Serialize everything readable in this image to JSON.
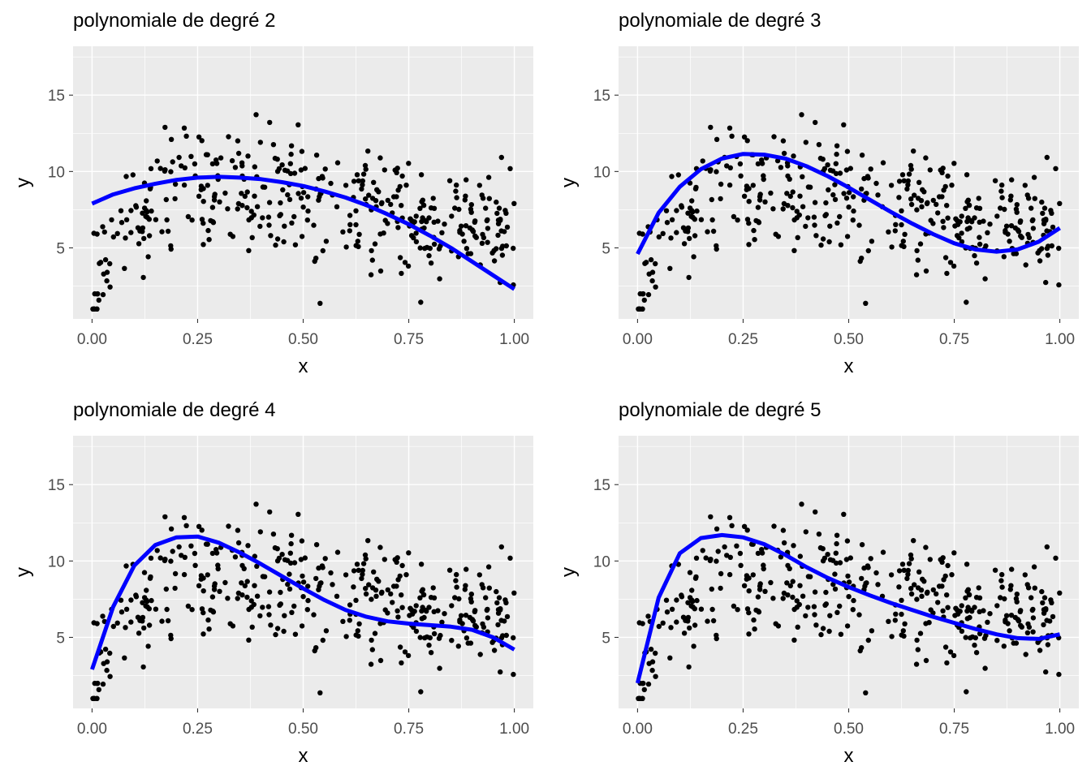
{
  "chart_data": [
    {
      "type": "scatter",
      "title": "polynomiale de degré 2",
      "xlabel": "x",
      "ylabel": "y",
      "xlim": [
        -0.045,
        1.045
      ],
      "ylim": [
        0.35,
        18.2
      ],
      "x_ticks": [
        {
          "v": 0,
          "label": "0.00"
        },
        {
          "v": 0.25,
          "label": "0.25"
        },
        {
          "v": 0.5,
          "label": "0.50"
        },
        {
          "v": 0.75,
          "label": "0.75"
        },
        {
          "v": 1,
          "label": "1.00"
        }
      ],
      "y_ticks": [
        {
          "v": 5,
          "label": "5"
        },
        {
          "v": 10,
          "label": "10"
        },
        {
          "v": 15,
          "label": "15"
        }
      ],
      "fit": {
        "name": "polynomial fit (degree 2)",
        "color": "#0000ff",
        "x": [
          0,
          0.05,
          0.1,
          0.15,
          0.2,
          0.25,
          0.3,
          0.35,
          0.4,
          0.45,
          0.5,
          0.55,
          0.6,
          0.65,
          0.7,
          0.75,
          0.8,
          0.85,
          0.9,
          0.95,
          1.0
        ],
        "y": [
          7.9,
          8.5,
          8.9,
          9.2,
          9.45,
          9.6,
          9.65,
          9.6,
          9.5,
          9.3,
          9.05,
          8.7,
          8.3,
          7.8,
          7.2,
          6.55,
          5.8,
          5.0,
          4.1,
          3.2,
          2.3
        ]
      }
    },
    {
      "type": "scatter",
      "title": "polynomiale de degré 3",
      "xlabel": "x",
      "ylabel": "y",
      "xlim": [
        -0.045,
        1.045
      ],
      "ylim": [
        0.35,
        18.2
      ],
      "x_ticks": [
        {
          "v": 0,
          "label": "0.00"
        },
        {
          "v": 0.25,
          "label": "0.25"
        },
        {
          "v": 0.5,
          "label": "0.50"
        },
        {
          "v": 0.75,
          "label": "0.75"
        },
        {
          "v": 1,
          "label": "1.00"
        }
      ],
      "y_ticks": [
        {
          "v": 5,
          "label": "5"
        },
        {
          "v": 10,
          "label": "10"
        },
        {
          "v": 15,
          "label": "15"
        }
      ],
      "fit": {
        "name": "polynomial fit (degree 3)",
        "color": "#0000ff",
        "x": [
          0,
          0.05,
          0.1,
          0.15,
          0.2,
          0.25,
          0.3,
          0.35,
          0.4,
          0.45,
          0.5,
          0.55,
          0.6,
          0.65,
          0.7,
          0.75,
          0.8,
          0.85,
          0.9,
          0.95,
          1.0
        ],
        "y": [
          4.6,
          7.3,
          9.0,
          10.15,
          10.85,
          11.15,
          11.1,
          10.85,
          10.35,
          9.7,
          8.95,
          8.15,
          7.35,
          6.6,
          5.9,
          5.3,
          4.9,
          4.75,
          4.9,
          5.4,
          6.3
        ]
      }
    },
    {
      "type": "scatter",
      "title": "polynomiale de degré 4",
      "xlabel": "x",
      "ylabel": "y",
      "xlim": [
        -0.045,
        1.045
      ],
      "ylim": [
        0.35,
        18.2
      ],
      "x_ticks": [
        {
          "v": 0,
          "label": "0.00"
        },
        {
          "v": 0.25,
          "label": "0.25"
        },
        {
          "v": 0.5,
          "label": "0.50"
        },
        {
          "v": 0.75,
          "label": "0.75"
        },
        {
          "v": 1,
          "label": "1.00"
        }
      ],
      "y_ticks": [
        {
          "v": 5,
          "label": "5"
        },
        {
          "v": 10,
          "label": "10"
        },
        {
          "v": 15,
          "label": "15"
        }
      ],
      "fit": {
        "name": "polynomial fit (degree 4)",
        "color": "#0000ff",
        "x": [
          0,
          0.05,
          0.1,
          0.15,
          0.2,
          0.25,
          0.3,
          0.35,
          0.4,
          0.45,
          0.5,
          0.55,
          0.6,
          0.65,
          0.7,
          0.75,
          0.8,
          0.85,
          0.9,
          0.95,
          1.0
        ],
        "y": [
          2.9,
          7.0,
          9.7,
          11.05,
          11.55,
          11.6,
          11.2,
          10.55,
          9.8,
          9.0,
          8.2,
          7.45,
          6.8,
          6.35,
          6.05,
          5.9,
          5.8,
          5.7,
          5.5,
          5.0,
          4.2
        ]
      }
    },
    {
      "type": "scatter",
      "title": "polynomiale de degré 5",
      "xlabel": "x",
      "ylabel": "y",
      "xlim": [
        -0.045,
        1.045
      ],
      "ylim": [
        0.35,
        18.2
      ],
      "x_ticks": [
        {
          "v": 0,
          "label": "0.00"
        },
        {
          "v": 0.25,
          "label": "0.25"
        },
        {
          "v": 0.5,
          "label": "0.50"
        },
        {
          "v": 0.75,
          "label": "0.75"
        },
        {
          "v": 1,
          "label": "1.00"
        }
      ],
      "y_ticks": [
        {
          "v": 5,
          "label": "5"
        },
        {
          "v": 10,
          "label": "10"
        },
        {
          "v": 15,
          "label": "15"
        }
      ],
      "fit": {
        "name": "polynomial fit (degree 5)",
        "color": "#0000ff",
        "x": [
          0,
          0.05,
          0.1,
          0.15,
          0.2,
          0.25,
          0.3,
          0.35,
          0.4,
          0.45,
          0.5,
          0.55,
          0.6,
          0.65,
          0.7,
          0.75,
          0.8,
          0.85,
          0.9,
          0.95,
          1.0
        ],
        "y": [
          2.0,
          7.6,
          10.5,
          11.5,
          11.7,
          11.55,
          11.1,
          10.4,
          9.6,
          8.9,
          8.3,
          7.75,
          7.25,
          6.8,
          6.35,
          5.95,
          5.55,
          5.2,
          4.95,
          4.9,
          5.2
        ]
      }
    }
  ]
}
